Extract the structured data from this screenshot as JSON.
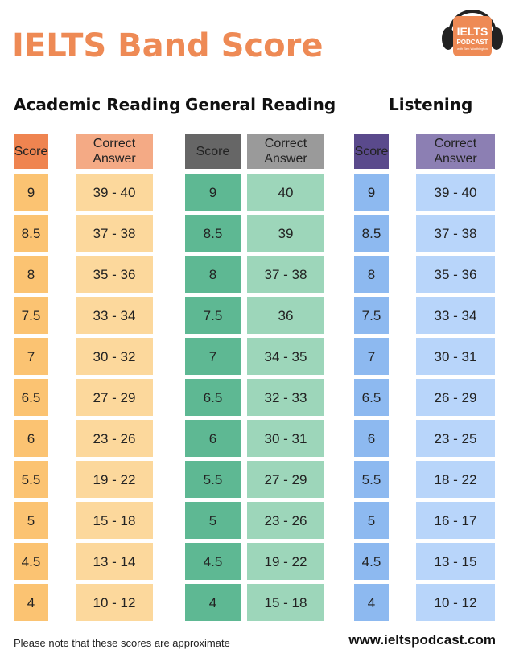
{
  "title": "IELTS  Band Score",
  "logo": {
    "line1": "IELTS",
    "line2": "PODCAST",
    "line3": "with Ben Worthington"
  },
  "sections": [
    {
      "name": "Academic Reading",
      "score_header": "Score",
      "answer_header": "Correct Answer",
      "colors": {
        "score_header": "#EF8450",
        "answer_header": "#F4AA85",
        "score": "#FBC372",
        "answer": "#FCD89C"
      },
      "rows": [
        [
          "9",
          "39 - 40"
        ],
        [
          "8.5",
          "37 - 38"
        ],
        [
          "8",
          "35 - 36"
        ],
        [
          "7.5",
          "33 - 34"
        ],
        [
          "7",
          "30 - 32"
        ],
        [
          "6.5",
          "27 - 29"
        ],
        [
          "6",
          "23 - 26"
        ],
        [
          "5.5",
          "19 - 22"
        ],
        [
          "5",
          "15 - 18"
        ],
        [
          "4.5",
          "13 - 14"
        ],
        [
          "4",
          "10 - 12"
        ]
      ]
    },
    {
      "name": "General Reading",
      "score_header": "Score",
      "answer_header": "Correct Answer",
      "colors": {
        "score_header": "#666666",
        "answer_header": "#9A9A9A",
        "score": "#5EB893",
        "answer": "#9DD6BA"
      },
      "rows": [
        [
          "9",
          "40"
        ],
        [
          "8.5",
          "39"
        ],
        [
          "8",
          "37 - 38"
        ],
        [
          "7.5",
          "36"
        ],
        [
          "7",
          "34 - 35"
        ],
        [
          "6.5",
          "32 - 33"
        ],
        [
          "6",
          "30 - 31"
        ],
        [
          "5.5",
          "27 - 29"
        ],
        [
          "5",
          "23 - 26"
        ],
        [
          "4.5",
          "19 - 22"
        ],
        [
          "4",
          "15 - 18"
        ]
      ]
    },
    {
      "name": "Listening",
      "score_header": "Score",
      "answer_header": "Correct Answer",
      "colors": {
        "score_header": "#5A4A8C",
        "answer_header": "#8C7FB3",
        "score": "#8DB9F0",
        "answer": "#B8D5FA"
      },
      "rows": [
        [
          "9",
          "39 - 40"
        ],
        [
          "8.5",
          "37 - 38"
        ],
        [
          "8",
          "35 - 36"
        ],
        [
          "7.5",
          "33 - 34"
        ],
        [
          "7",
          "30 - 31"
        ],
        [
          "6.5",
          "26 - 29"
        ],
        [
          "6",
          "23 - 25"
        ],
        [
          "5.5",
          "18 - 22"
        ],
        [
          "5",
          "16 - 17"
        ],
        [
          "4.5",
          "13 - 15"
        ],
        [
          "4",
          "10 - 12"
        ]
      ]
    }
  ],
  "footer": {
    "note": "Please note that these scores are approximate",
    "url": "www.ieltspodcast.com"
  }
}
